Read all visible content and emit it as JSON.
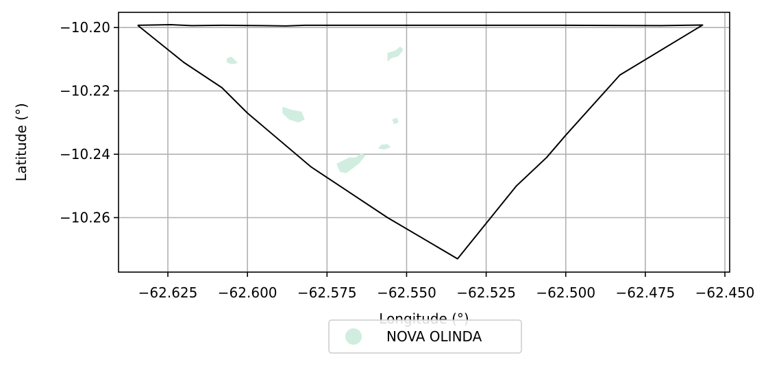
{
  "chart_data": {
    "type": "map",
    "xlabel": "Longitude (°)",
    "ylabel": "Latitude (°)",
    "xlim": [
      -62.6405,
      -62.4485
    ],
    "ylim": [
      -10.2772,
      -10.1952
    ],
    "x_ticks": [
      {
        "value": -62.625,
        "label": "−62.625"
      },
      {
        "value": -62.6,
        "label": "−62.600"
      },
      {
        "value": -62.575,
        "label": "−62.575"
      },
      {
        "value": -62.55,
        "label": "−62.550"
      },
      {
        "value": -62.525,
        "label": "−62.525"
      },
      {
        "value": -62.5,
        "label": "−62.500"
      },
      {
        "value": -62.475,
        "label": "−62.475"
      },
      {
        "value": -62.45,
        "label": "−62.450"
      }
    ],
    "y_ticks": [
      {
        "value": -10.2,
        "label": "−10.20"
      },
      {
        "value": -10.22,
        "label": "−10.22"
      },
      {
        "value": -10.24,
        "label": "−10.24"
      },
      {
        "value": -10.26,
        "label": "−10.26"
      }
    ],
    "grid": true,
    "boundary": {
      "stroke": "#000000",
      "points": [
        [
          -62.6345,
          -10.1993
        ],
        [
          -62.624,
          -10.1991
        ],
        [
          -62.6175,
          -10.1994
        ],
        [
          -62.608,
          -10.1993
        ],
        [
          -62.595,
          -10.1994
        ],
        [
          -62.588,
          -10.1995
        ],
        [
          -62.582,
          -10.1993
        ],
        [
          -62.55,
          -10.1993
        ],
        [
          -62.5,
          -10.1993
        ],
        [
          -62.47,
          -10.1994
        ],
        [
          -62.457,
          -10.1992
        ],
        [
          -62.483,
          -10.215
        ],
        [
          -62.5,
          -10.234
        ],
        [
          -62.506,
          -10.241
        ],
        [
          -62.5155,
          -10.25
        ],
        [
          -62.534,
          -10.273
        ],
        [
          -62.556,
          -10.26
        ],
        [
          -62.58,
          -10.244
        ],
        [
          -62.6,
          -10.227
        ],
        [
          -62.608,
          -10.219
        ],
        [
          -62.62,
          -10.211
        ],
        [
          -62.6345,
          -10.1993
        ]
      ]
    },
    "regions": [
      {
        "name": "NOVA OLINDA",
        "color": "#d0ede0",
        "polygons": [
          [
            [
              -62.6065,
              -10.2097
            ],
            [
              -62.605,
              -10.2092
            ],
            [
              -62.604,
              -10.2102
            ],
            [
              -62.603,
              -10.2112
            ],
            [
              -62.605,
              -10.2116
            ],
            [
              -62.6065,
              -10.211
            ]
          ],
          [
            [
              -62.556,
              -10.208
            ],
            [
              -62.5535,
              -10.2072
            ],
            [
              -62.552,
              -10.206
            ],
            [
              -62.551,
              -10.207
            ],
            [
              -62.5525,
              -10.209
            ],
            [
              -62.555,
              -10.2098
            ],
            [
              -62.556,
              -10.2108
            ]
          ],
          [
            [
              -62.589,
              -10.225
            ],
            [
              -62.586,
              -10.226
            ],
            [
              -62.583,
              -10.2265
            ],
            [
              -62.582,
              -10.229
            ],
            [
              -62.584,
              -10.23
            ],
            [
              -62.587,
              -10.229
            ],
            [
              -62.589,
              -10.227
            ]
          ],
          [
            [
              -62.5545,
              -10.229
            ],
            [
              -62.553,
              -10.2285
            ],
            [
              -62.5525,
              -10.23
            ],
            [
              -62.554,
              -10.2305
            ]
          ],
          [
            [
              -62.558,
              -10.237
            ],
            [
              -62.556,
              -10.2368
            ],
            [
              -62.555,
              -10.2378
            ],
            [
              -62.557,
              -10.2385
            ],
            [
              -62.559,
              -10.2382
            ]
          ],
          [
            [
              -62.572,
              -10.243
            ],
            [
              -62.57,
              -10.242
            ],
            [
              -62.568,
              -10.241
            ],
            [
              -62.566,
              -10.241
            ],
            [
              -62.564,
              -10.2395
            ],
            [
              -62.563,
              -10.2405
            ],
            [
              -62.565,
              -10.243
            ],
            [
              -62.567,
              -10.2445
            ],
            [
              -62.569,
              -10.246
            ],
            [
              -62.571,
              -10.2455
            ]
          ]
        ]
      }
    ],
    "legend": {
      "position": "bottom-center",
      "entries": [
        {
          "label": "NOVA OLINDA",
          "color": "#d0ede0"
        }
      ]
    }
  }
}
